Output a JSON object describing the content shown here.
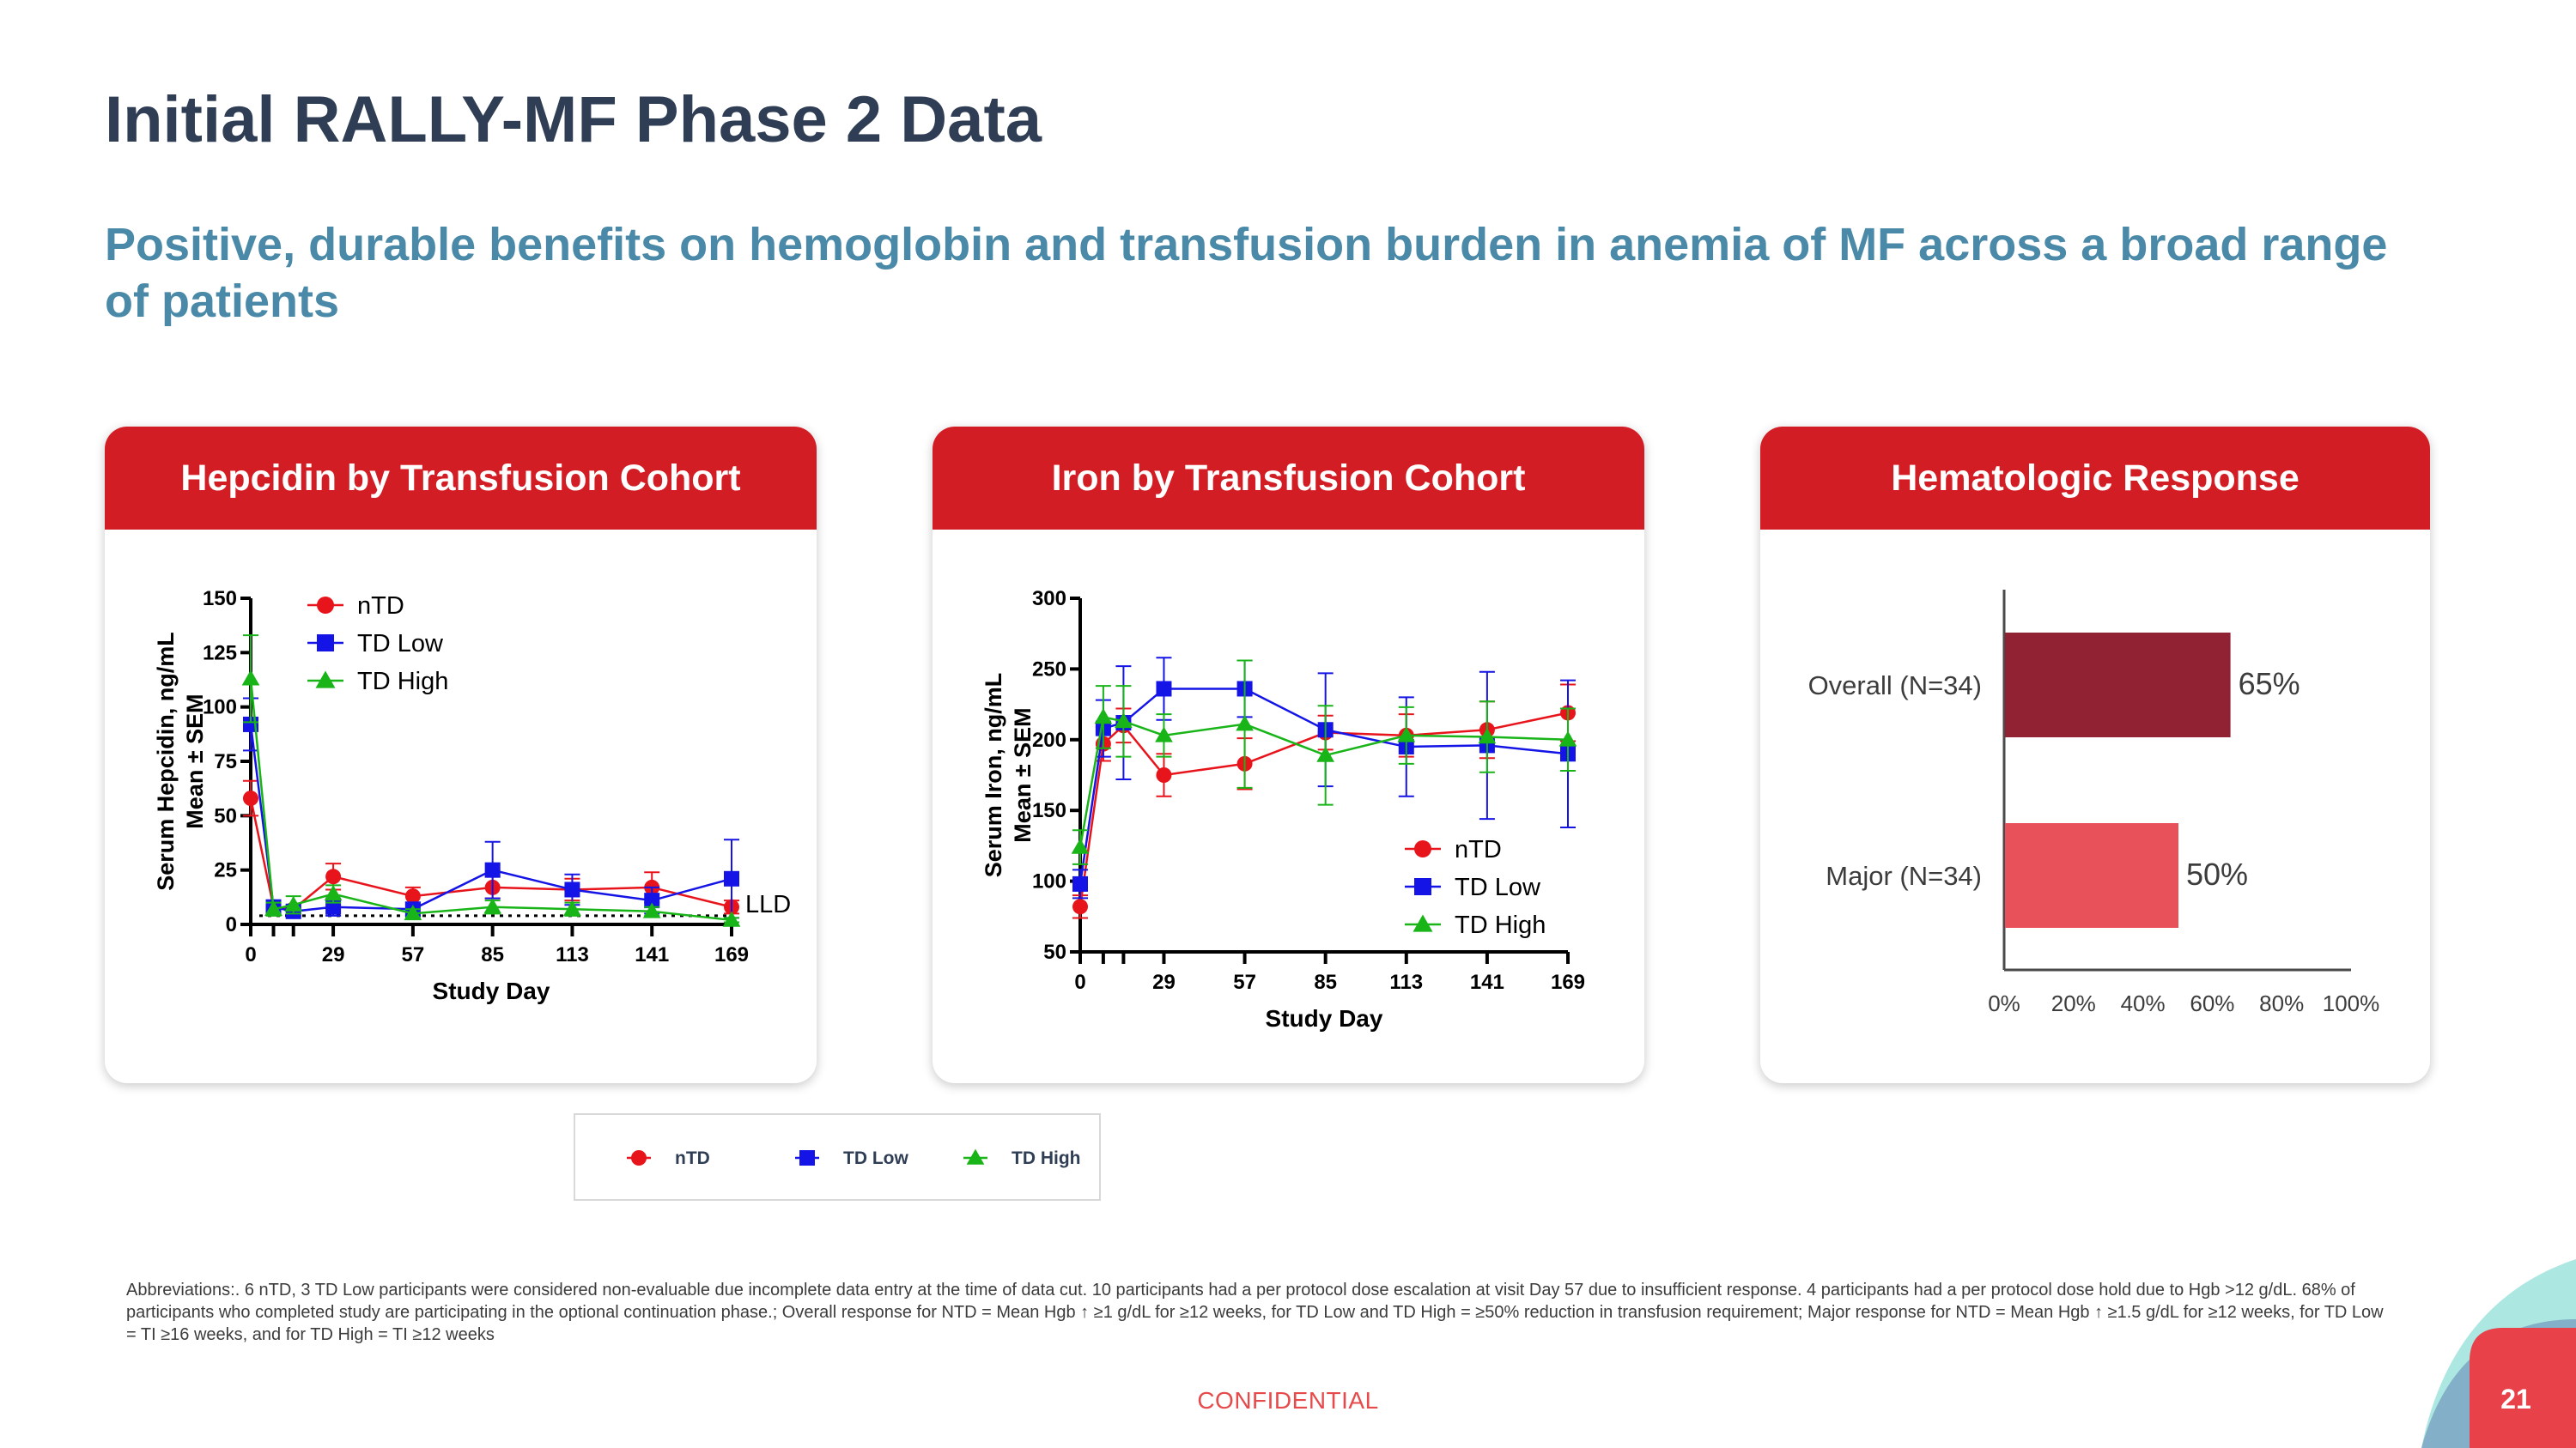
{
  "slide": {
    "title": "Initial RALLY-MF Phase 2 Data",
    "subtitle": "Positive, durable benefits on hemoglobin and transfusion burden in anemia of MF across a broad range of patients",
    "footnote": "Abbreviations:. 6 nTD, 3 TD Low participants were considered non-evaluable due incomplete data entry at the time of data cut. 10 participants had a per protocol dose escalation at visit Day 57 due to insufficient response. 4 participants had a per protocol dose hold due to Hgb >12 g/dL. 68% of participants who completed study are participating in the optional continuation phase.; Overall response for NTD = Mean Hgb ↑ ≥1 g/dL for ≥12 weeks, for TD Low and TD High = ≥50% reduction in transfusion requirement; Major response for NTD = Mean Hgb ↑ ≥1.5 g/dL for ≥12 weeks, for TD Low = TI ≥16 weeks, and for TD High = TI ≥12 weeks",
    "confidential": "CONFIDENTIAL",
    "page_number": "21"
  },
  "colors": {
    "title": "#2f3e54",
    "subtitle": "#4a8aa8",
    "header": "#d31d24",
    "nTD": "#e8141c",
    "TD Low": "#1414e6",
    "TD High": "#18b418",
    "overall_bar": "#912234",
    "major_bar": "#e8505a"
  },
  "legend": {
    "items": [
      {
        "label": "nTD",
        "marker": "circle"
      },
      {
        "label": "TD Low",
        "marker": "square"
      },
      {
        "label": "TD High",
        "marker": "triangle"
      }
    ]
  },
  "chart_data": [
    {
      "type": "line",
      "title": "Hepcidin by Transfusion Cohort",
      "xlabel": "Study Day",
      "ylabel": "Serum Hepcidin, ng/mL\nMean ± SEM",
      "xticks": [
        0,
        29,
        57,
        85,
        113,
        141,
        169
      ],
      "yticks": [
        0,
        25,
        50,
        75,
        100,
        125,
        150
      ],
      "xlim": [
        0,
        169
      ],
      "ylim": [
        0,
        150
      ],
      "annotation": "LLD",
      "reference_line_y": 4,
      "legend_position": "top-left",
      "series": [
        {
          "name": "nTD",
          "marker": "circle",
          "x": [
            0,
            8,
            15,
            29,
            57,
            85,
            113,
            141,
            169
          ],
          "y": [
            58,
            8,
            7,
            22,
            13,
            17,
            16,
            17,
            8
          ],
          "sem": [
            8,
            2,
            2,
            6,
            4,
            5,
            5,
            7,
            3
          ]
        },
        {
          "name": "TD Low",
          "marker": "square",
          "x": [
            0,
            8,
            15,
            29,
            57,
            85,
            113,
            141,
            169
          ],
          "y": [
            92,
            8,
            6,
            8,
            7,
            25,
            16,
            11,
            21
          ],
          "sem": [
            12,
            3,
            2,
            4,
            3,
            13,
            7,
            6,
            18
          ]
        },
        {
          "name": "TD High",
          "marker": "triangle",
          "x": [
            0,
            8,
            15,
            29,
            57,
            85,
            113,
            141,
            169
          ],
          "y": [
            113,
            7,
            9,
            14,
            5,
            8,
            7,
            6,
            2
          ],
          "sem": [
            20,
            3,
            4,
            4,
            2,
            3,
            3,
            2,
            1
          ]
        }
      ]
    },
    {
      "type": "line",
      "title": "Iron by Transfusion Cohort",
      "xlabel": "Study Day",
      "ylabel": "Serum Iron, ng/mL\nMean ± SEM",
      "xticks": [
        0,
        29,
        57,
        85,
        113,
        141,
        169
      ],
      "yticks": [
        50,
        100,
        150,
        200,
        250,
        300
      ],
      "xlim": [
        0,
        169
      ],
      "ylim": [
        50,
        300
      ],
      "legend_position": "bottom-right",
      "series": [
        {
          "name": "nTD",
          "marker": "circle",
          "x": [
            0,
            8,
            15,
            29,
            57,
            85,
            113,
            141,
            169
          ],
          "y": [
            82,
            197,
            210,
            175,
            183,
            205,
            203,
            207,
            219
          ],
          "sem": [
            8,
            12,
            12,
            15,
            18,
            12,
            15,
            20,
            20
          ]
        },
        {
          "name": "TD Low",
          "marker": "square",
          "x": [
            0,
            8,
            15,
            29,
            57,
            85,
            113,
            141,
            169
          ],
          "y": [
            98,
            208,
            212,
            236,
            236,
            207,
            195,
            196,
            190
          ],
          "sem": [
            10,
            20,
            40,
            22,
            20,
            40,
            35,
            52,
            52
          ]
        },
        {
          "name": "TD High",
          "marker": "triangle",
          "x": [
            0,
            8,
            15,
            29,
            57,
            85,
            113,
            141,
            169
          ],
          "y": [
            124,
            216,
            213,
            203,
            211,
            189,
            203,
            202,
            200
          ],
          "sem": [
            12,
            22,
            25,
            15,
            45,
            35,
            20,
            25,
            22
          ]
        }
      ]
    },
    {
      "type": "bar",
      "orientation": "horizontal",
      "title": "Hematologic Response",
      "categories": [
        "Overall (N=34)",
        "Major (N=34)"
      ],
      "values": [
        65,
        50
      ],
      "data_labels": [
        "65%",
        "50%"
      ],
      "xticks": [
        "0%",
        "20%",
        "40%",
        "60%",
        "80%",
        "100%"
      ],
      "xlim": [
        0,
        100
      ]
    }
  ]
}
